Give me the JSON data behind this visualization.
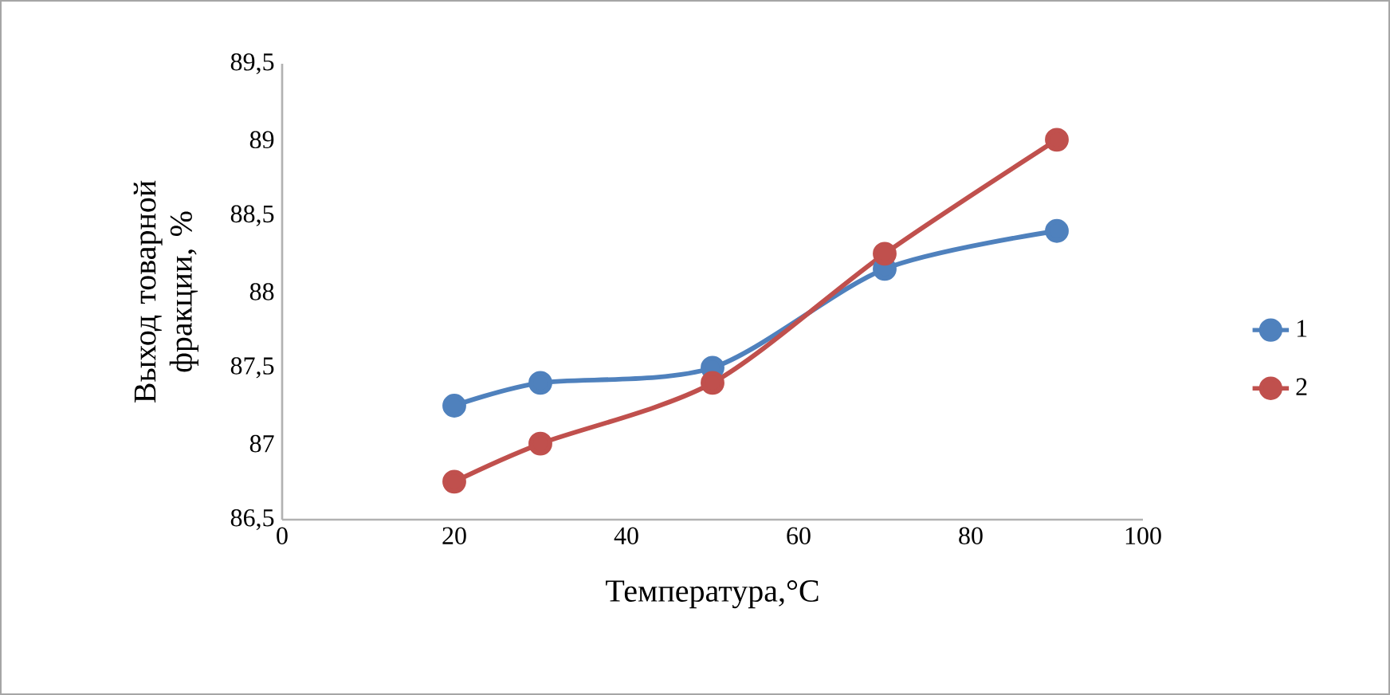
{
  "chart_data": {
    "type": "line",
    "xlabel": "Температура,°C",
    "ylabel": "Выход товарной фракции, %",
    "xlim": [
      0,
      100
    ],
    "xticks": [
      0,
      20,
      40,
      60,
      80,
      100
    ],
    "ylim": [
      86.5,
      89.5
    ],
    "yticks": [
      {
        "value": 86.5,
        "label": "86,5"
      },
      {
        "value": 87,
        "label": "87"
      },
      {
        "value": 87.5,
        "label": "87,5"
      },
      {
        "value": 88,
        "label": "88"
      },
      {
        "value": 88.5,
        "label": "88,5"
      },
      {
        "value": 89,
        "label": "89"
      },
      {
        "value": 89.5,
        "label": "89,5"
      }
    ],
    "x": [
      20,
      30,
      50,
      70,
      90
    ],
    "series": [
      {
        "name": "1",
        "color": "#4f81bd",
        "values": [
          87.25,
          87.4,
          87.5,
          88.15,
          88.4
        ]
      },
      {
        "name": "2",
        "color": "#c0504d",
        "values": [
          86.75,
          87.0,
          87.4,
          88.25,
          89.0
        ]
      }
    ],
    "marker": "circle",
    "line_style": "solid",
    "legend": "right",
    "grid": false
  }
}
